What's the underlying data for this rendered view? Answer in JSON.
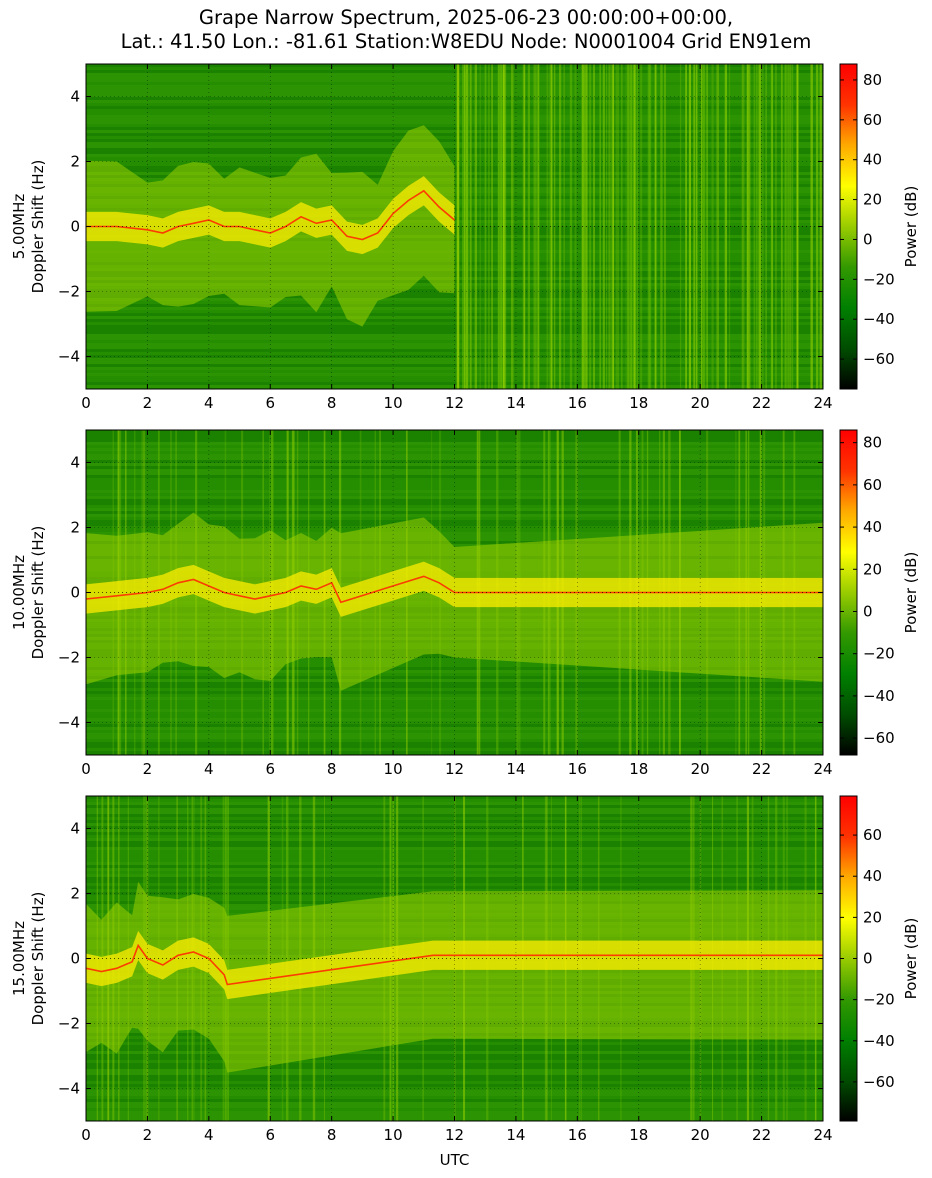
{
  "title": {
    "line1": "Grape Narrow Spectrum, 2025-06-23 00:00:00+00:00,",
    "line2": "Lat.: 41.50 Lon.: -81.61 Station:W8EDU Node: N0001004 Grid EN91em"
  },
  "colors": {
    "colormap": [
      "#000000",
      "#004d00",
      "#008000",
      "#339900",
      "#99cc00",
      "#ffff00",
      "#ffaa00",
      "#ff3300",
      "#ff0000"
    ],
    "trace": "#ff2a00"
  },
  "chart_data": [
    {
      "type": "heatmap",
      "row_label": "5.00MHz",
      "ylabel": "Doppler Shift (Hz)",
      "xlabel": "",
      "colorbar_label": "Power (dB)",
      "xlim": [
        0,
        24
      ],
      "ylim": [
        -5,
        5
      ],
      "xticks": [
        0,
        2,
        4,
        6,
        8,
        10,
        12,
        14,
        16,
        18,
        20,
        22,
        24
      ],
      "yticks": [
        -4,
        -2,
        0,
        2,
        4
      ],
      "clim": [
        -75,
        88
      ],
      "cticks": [
        80,
        60,
        40,
        20,
        0,
        -20,
        -40,
        -60
      ],
      "grid": true,
      "ridge": {
        "t": [
          0,
          1,
          2,
          2.5,
          3,
          3.5,
          4,
          4.5,
          5,
          5.5,
          6,
          6.5,
          7,
          7.5,
          8,
          8.5,
          9,
          9.5,
          10,
          10.5,
          11,
          11.5,
          12
        ],
        "hz": [
          0,
          0,
          -0.1,
          -0.2,
          0,
          0.1,
          0.2,
          0,
          0,
          -0.1,
          -0.2,
          0,
          0.3,
          0.1,
          0.2,
          -0.3,
          -0.4,
          -0.2,
          0.4,
          0.8,
          1.1,
          0.6,
          0.2
        ]
      }
    },
    {
      "type": "heatmap",
      "row_label": "10.00MHz",
      "ylabel": "Doppler Shift (Hz)",
      "xlabel": "",
      "colorbar_label": "Power (dB)",
      "xlim": [
        0,
        24
      ],
      "ylim": [
        -5,
        5
      ],
      "xticks": [
        0,
        2,
        4,
        6,
        8,
        10,
        12,
        14,
        16,
        18,
        20,
        22,
        24
      ],
      "yticks": [
        -4,
        -2,
        0,
        2,
        4
      ],
      "clim": [
        -68,
        86
      ],
      "cticks": [
        80,
        60,
        40,
        20,
        0,
        -20,
        -40,
        -60
      ],
      "grid": true,
      "ridge": {
        "t": [
          0,
          1,
          2,
          2.5,
          3,
          3.5,
          4,
          4.5,
          5,
          5.5,
          6,
          6.5,
          7,
          7.5,
          8,
          8.3,
          11,
          11.5,
          12,
          24
        ],
        "hz": [
          -0.2,
          -0.1,
          0,
          0.1,
          0.3,
          0.4,
          0.2,
          0,
          -0.1,
          -0.2,
          -0.1,
          0,
          0.2,
          0.1,
          0.3,
          -0.3,
          0.5,
          0.3,
          0,
          0
        ]
      }
    },
    {
      "type": "heatmap",
      "row_label": "15.00MHz",
      "ylabel": "Doppler Shift (Hz)",
      "xlabel": "UTC",
      "colorbar_label": "Power (dB)",
      "xlim": [
        0,
        24
      ],
      "ylim": [
        -5,
        5
      ],
      "xticks": [
        0,
        2,
        4,
        6,
        8,
        10,
        12,
        14,
        16,
        18,
        20,
        22,
        24
      ],
      "yticks": [
        -4,
        -2,
        0,
        2,
        4
      ],
      "clim": [
        -79,
        79
      ],
      "cticks": [
        60,
        40,
        20,
        0,
        -20,
        -40,
        -60
      ],
      "grid": true,
      "ridge": {
        "t": [
          0,
          0.5,
          1,
          1.5,
          1.7,
          2,
          2.5,
          3,
          3.5,
          4,
          4.5,
          4.6,
          11.3,
          24
        ],
        "hz": [
          -0.3,
          -0.4,
          -0.3,
          -0.1,
          0.4,
          0,
          -0.2,
          0.1,
          0.2,
          0,
          -0.5,
          -0.8,
          0.1,
          0.1
        ]
      }
    }
  ]
}
